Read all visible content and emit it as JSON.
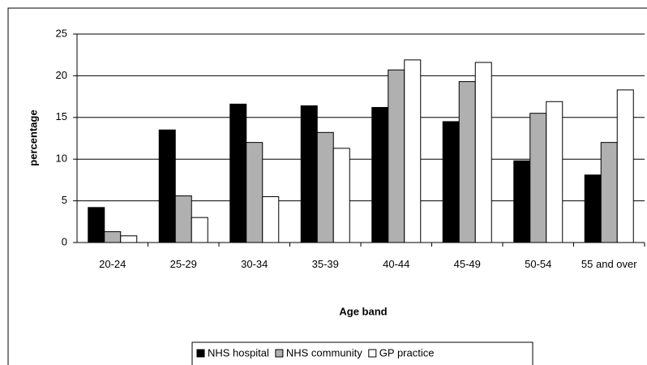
{
  "chart_data": {
    "type": "bar",
    "x_label": "Age band",
    "y_label": "percentage",
    "categories": [
      "20-24",
      "25-29",
      "30-34",
      "35-39",
      "40-44",
      "45-49",
      "50-54",
      "55 and over"
    ],
    "series": [
      {
        "name": "NHS hospital",
        "color": "#000000",
        "values": [
          4.2,
          13.5,
          16.6,
          16.4,
          16.2,
          14.5,
          9.8,
          8.1
        ]
      },
      {
        "name": "NHS community",
        "color": "#b0b0b0",
        "values": [
          1.3,
          5.6,
          12.0,
          13.2,
          20.7,
          19.3,
          15.5,
          12.0
        ]
      },
      {
        "name": "GP practice",
        "color": "#ffffff",
        "values": [
          0.8,
          3.0,
          5.5,
          11.3,
          21.9,
          21.6,
          16.9,
          18.3
        ]
      }
    ],
    "ylim": [
      0,
      25
    ],
    "yticks": [
      0,
      5,
      10,
      15,
      20,
      25
    ],
    "grid": true,
    "legend": "bottom"
  }
}
